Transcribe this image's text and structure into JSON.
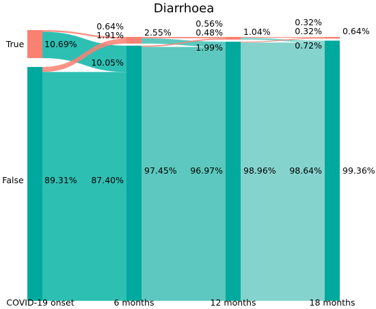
{
  "chart_data": {
    "type": "sankey",
    "title": "Diarrhoea",
    "stages": [
      "COVID-19 onset",
      "6 months",
      "12 months",
      "18 months"
    ],
    "categories": [
      "True",
      "False"
    ],
    "colors": {
      "true_node": "#FA8072",
      "false_node": "#00A99D",
      "flow_teal_1": "#2EBFB3",
      "flow_teal_2": "#5CC8BF",
      "flow_teal_3": "#84D3CD",
      "flow_salmon": "#FA8072"
    },
    "nodes": [
      {
        "stage": 0,
        "category": "True",
        "value": 10.69
      },
      {
        "stage": 0,
        "category": "False",
        "value": 89.31
      },
      {
        "stage": 1,
        "category": "True",
        "value": 2.55
      },
      {
        "stage": 1,
        "category": "False",
        "value": 97.45
      },
      {
        "stage": 2,
        "category": "True",
        "value": 1.04
      },
      {
        "stage": 2,
        "category": "False",
        "value": 98.96
      },
      {
        "stage": 3,
        "category": "True",
        "value": 0.64
      },
      {
        "stage": 3,
        "category": "False",
        "value": 99.36
      }
    ],
    "flows": [
      {
        "from_stage": 0,
        "from": "True",
        "to": "True",
        "value": 0.64
      },
      {
        "from_stage": 0,
        "from": "True",
        "to": "False",
        "value": 10.05
      },
      {
        "from_stage": 0,
        "from": "False",
        "to": "True",
        "value": 1.91
      },
      {
        "from_stage": 0,
        "from": "False",
        "to": "False",
        "value": 87.4
      },
      {
        "from_stage": 1,
        "from": "True",
        "to": "True",
        "value": 0.56
      },
      {
        "from_stage": 1,
        "from": "True",
        "to": "False",
        "value": 1.99
      },
      {
        "from_stage": 1,
        "from": "False",
        "to": "True",
        "value": 0.48
      },
      {
        "from_stage": 1,
        "from": "False",
        "to": "False",
        "value": 96.97
      },
      {
        "from_stage": 2,
        "from": "True",
        "to": "True",
        "value": 0.32
      },
      {
        "from_stage": 2,
        "from": "True",
        "to": "False",
        "value": 0.72
      },
      {
        "from_stage": 2,
        "from": "False",
        "to": "True",
        "value": 0.32
      },
      {
        "from_stage": 2,
        "from": "False",
        "to": "False",
        "value": 98.64
      }
    ],
    "labels": {
      "node_true_0": "10.69%",
      "node_false_0": "89.31%",
      "node_true_1": "2.55%",
      "node_false_1": "97.45%",
      "node_true_2": "1.04%",
      "node_false_2": "98.96%",
      "node_true_3": "0.64%",
      "node_false_3": "99.36%",
      "flow_0_tt": "0.64%",
      "flow_0_tf": "10.05%",
      "flow_0_ft": "1.91%",
      "flow_0_ff": "87.40%",
      "flow_1_tt": "0.56%",
      "flow_1_tf": "1.99%",
      "flow_1_ft": "0.48%",
      "flow_1_ff": "96.97%",
      "flow_2_tt": "0.32%",
      "flow_2_tf": "0.72%",
      "flow_2_ft": "0.32%",
      "flow_2_ff": "98.64%"
    }
  }
}
